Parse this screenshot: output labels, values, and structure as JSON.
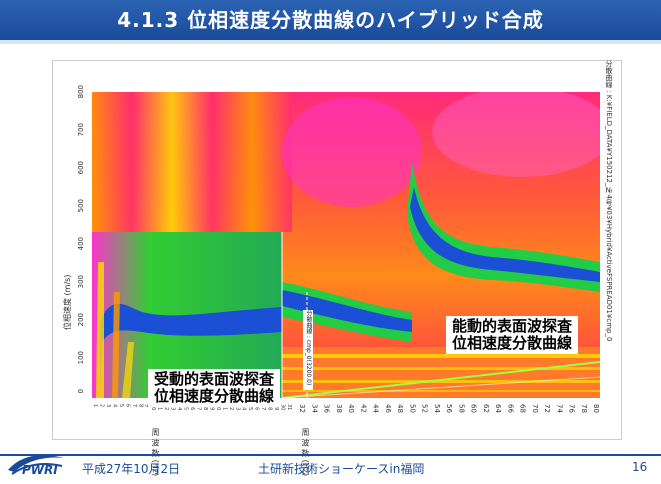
{
  "slide": {
    "title": "4.1.3  位相速度分散曲線のハイブリッド合成",
    "footer_left": "平成27年10月2日",
    "footer_center": "土研新技術ショーケースin福岡",
    "footer_right": "16",
    "logo_text": "PWRI"
  },
  "figure": {
    "y_axis_label": "位相速度 (m/s)",
    "y_ticks": [
      "0",
      "100",
      "200",
      "300",
      "400",
      "500",
      "600",
      "700",
      "800"
    ],
    "x_ticks_left": [
      "1",
      "2",
      "3",
      "4",
      "5",
      "6",
      "7",
      "8",
      "9",
      "10",
      "11",
      "12",
      "13",
      "14",
      "15",
      "16",
      "17",
      "18",
      "19",
      "20",
      "21",
      "22",
      "23",
      "24",
      "25",
      "26",
      "27",
      "28",
      "29",
      "30",
      "31"
    ],
    "x_ticks_right": [
      "32",
      "34",
      "36",
      "38",
      "40",
      "42",
      "44",
      "46",
      "48",
      "50",
      "52",
      "54",
      "56",
      "58",
      "60",
      "62",
      "64",
      "66",
      "68",
      "70",
      "72",
      "74",
      "76",
      "78",
      "80"
    ],
    "x_unit_left": "周 波 数 (Hz)",
    "x_unit_right": "周 波 数 (Hz)",
    "right_label": "分散曲線 : K:¥FIELD_DATA¥Y150212_№4号¥03¥Hybrid¥ActiveFSPREAD01¥cmp_0",
    "mid_label": "分散曲線 : cmp_0(3200.0)"
  },
  "labels": {
    "active": "能動的表面波探査\n位相速度分散曲線",
    "passive": "受動的表面波探査\n位相速度分散曲線"
  }
}
